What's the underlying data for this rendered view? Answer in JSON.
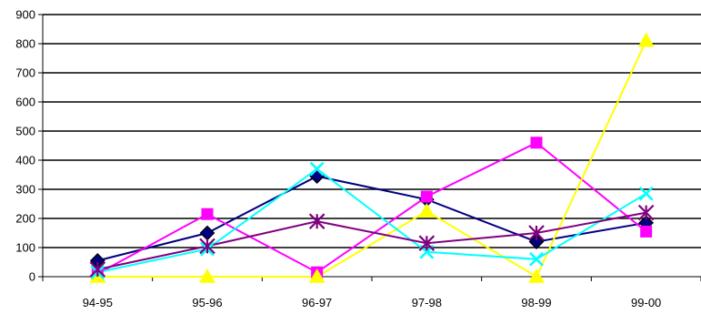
{
  "chart_data": {
    "type": "line",
    "title": "",
    "xlabel": "",
    "ylabel": "",
    "categories": [
      "94-95",
      "95-96",
      "96-97",
      "97-98",
      "98-99",
      "99-00"
    ],
    "ylim": [
      0,
      900
    ],
    "yticks": [
      0,
      100,
      200,
      300,
      400,
      500,
      600,
      700,
      800,
      900
    ],
    "grid": true,
    "legend": "none",
    "series": [
      {
        "color": "#000080",
        "marker": "diamond",
        "values": [
          55,
          150,
          345,
          265,
          120,
          185
        ]
      },
      {
        "color": "#ff00ff",
        "marker": "square",
        "values": [
          10,
          215,
          15,
          275,
          460,
          155
        ]
      },
      {
        "color": "#ffff00",
        "marker": "triangle",
        "values": [
          0,
          0,
          0,
          225,
          0,
          810
        ]
      },
      {
        "color": "#00ffff",
        "marker": "x",
        "values": [
          15,
          95,
          370,
          85,
          60,
          285
        ]
      },
      {
        "color": "#800080",
        "marker": "star",
        "values": [
          25,
          105,
          190,
          115,
          150,
          220
        ]
      }
    ]
  }
}
